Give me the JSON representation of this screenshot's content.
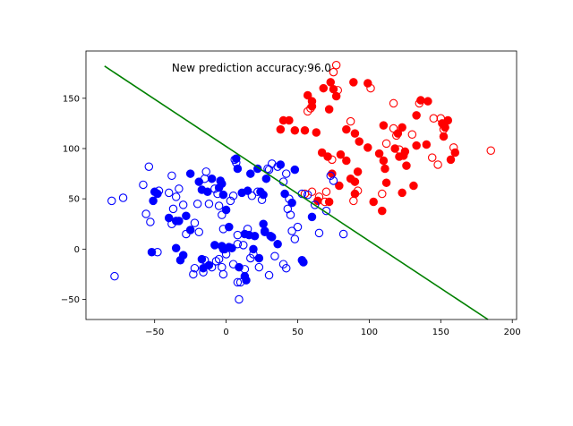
{
  "chart_data": {
    "type": "scatter",
    "title": "",
    "xlabel": "",
    "ylabel": "",
    "xlim": [
      -98,
      203
    ],
    "ylim": [
      -70,
      197
    ],
    "xticks": [
      -50,
      0,
      50,
      100,
      150,
      200
    ],
    "yticks": [
      -50,
      0,
      50,
      100,
      150
    ],
    "grid": false,
    "annotation": {
      "text": "New prediction accuracy:96.0",
      "x": -38,
      "y": 180
    },
    "decision_line": {
      "color": "#008000",
      "x": [
        -85,
        183
      ],
      "y": [
        182,
        -70
      ]
    },
    "series": [
      {
        "color": "#ff0000",
        "marker": "filled",
        "points": [
          [
            57,
            153
          ],
          [
            60,
            147
          ],
          [
            60,
            142
          ],
          [
            68,
            160
          ],
          [
            73,
            166
          ],
          [
            75,
            159
          ],
          [
            77,
            152
          ],
          [
            89,
            166
          ],
          [
            99,
            165
          ],
          [
            40,
            128
          ],
          [
            44,
            128
          ],
          [
            38,
            119
          ],
          [
            48,
            118
          ],
          [
            55,
            118
          ],
          [
            72,
            139
          ],
          [
            84,
            119
          ],
          [
            90,
            115
          ],
          [
            93,
            107
          ],
          [
            110,
            123
          ],
          [
            120,
            115
          ],
          [
            123,
            121
          ],
          [
            133,
            133
          ],
          [
            136,
            148
          ],
          [
            141,
            147
          ],
          [
            151,
            125
          ],
          [
            152,
            112
          ],
          [
            153,
            121
          ],
          [
            155,
            128
          ],
          [
            157,
            89
          ],
          [
            160,
            96
          ],
          [
            63,
            116
          ],
          [
            67,
            96
          ],
          [
            71,
            92
          ],
          [
            74,
            75
          ],
          [
            80,
            94
          ],
          [
            84,
            88
          ],
          [
            87,
            70
          ],
          [
            90,
            67
          ],
          [
            92,
            77
          ],
          [
            99,
            101
          ],
          [
            103,
            47
          ],
          [
            107,
            95
          ],
          [
            109,
            38
          ],
          [
            110,
            88
          ],
          [
            111,
            80
          ],
          [
            112,
            66
          ],
          [
            118,
            100
          ],
          [
            121,
            92
          ],
          [
            124,
            93
          ],
          [
            125,
            97
          ],
          [
            131,
            63
          ],
          [
            123,
            56
          ],
          [
            126,
            83
          ],
          [
            64,
            48
          ],
          [
            72,
            47
          ],
          [
            79,
            63
          ],
          [
            90,
            55
          ],
          [
            140,
            104
          ],
          [
            133,
            103
          ]
        ]
      },
      {
        "color": "#ff0000",
        "marker": "hollow",
        "points": [
          [
            77,
            183
          ],
          [
            75,
            176
          ],
          [
            78,
            158
          ],
          [
            101,
            160
          ],
          [
            57,
            137
          ],
          [
            59,
            140
          ],
          [
            117,
            145
          ],
          [
            135,
            145
          ],
          [
            145,
            130
          ],
          [
            150,
            130
          ],
          [
            159,
            101
          ],
          [
            152,
            119
          ],
          [
            117,
            120
          ],
          [
            130,
            114
          ],
          [
            87,
            127
          ],
          [
            112,
            105
          ],
          [
            121,
            99
          ],
          [
            144,
            91
          ],
          [
            148,
            84
          ],
          [
            185,
            98
          ],
          [
            74,
            89
          ],
          [
            92,
            58
          ],
          [
            89,
            48
          ],
          [
            109,
            55
          ],
          [
            69,
            47
          ],
          [
            70,
            57
          ],
          [
            60,
            57
          ],
          [
            65,
            52
          ],
          [
            55,
            55
          ],
          [
            119,
            113
          ]
        ]
      },
      {
        "color": "#0000ff",
        "marker": "filled",
        "points": [
          [
            -50,
            57
          ],
          [
            -48,
            55
          ],
          [
            -51,
            48
          ],
          [
            -40,
            31
          ],
          [
            -35,
            28
          ],
          [
            -33,
            28
          ],
          [
            -28,
            33
          ],
          [
            -25,
            75
          ],
          [
            -19,
            67
          ],
          [
            -17,
            59
          ],
          [
            -13,
            57
          ],
          [
            -10,
            70
          ],
          [
            -5,
            61
          ],
          [
            -4,
            68
          ],
          [
            -3,
            65
          ],
          [
            -2,
            54
          ],
          [
            0,
            39
          ],
          [
            2,
            22
          ],
          [
            7,
            90
          ],
          [
            8,
            80
          ],
          [
            11,
            56
          ],
          [
            15,
            58
          ],
          [
            17,
            75
          ],
          [
            20,
            13
          ],
          [
            22,
            80
          ],
          [
            24,
            57
          ],
          [
            26,
            54
          ],
          [
            26,
            25
          ],
          [
            27,
            17
          ],
          [
            28,
            70
          ],
          [
            27,
            18
          ],
          [
            32,
            12
          ],
          [
            31,
            13
          ],
          [
            36,
            5
          ],
          [
            38,
            84
          ],
          [
            41,
            55
          ],
          [
            46,
            46
          ],
          [
            48,
            79
          ],
          [
            53,
            -11
          ],
          [
            54,
            -13
          ],
          [
            60,
            32
          ],
          [
            -52,
            -3
          ],
          [
            -35,
            1
          ],
          [
            -32,
            -11
          ],
          [
            -25,
            19
          ],
          [
            -17,
            -10
          ],
          [
            -16,
            -19
          ],
          [
            -12,
            -16
          ],
          [
            -8,
            4
          ],
          [
            -3,
            3
          ],
          [
            -1,
            0
          ],
          [
            2,
            2
          ],
          [
            4,
            1
          ],
          [
            9,
            -18
          ],
          [
            13,
            -27
          ],
          [
            14,
            -31
          ],
          [
            19,
            0
          ],
          [
            23,
            -9
          ],
          [
            13,
            15
          ],
          [
            16,
            14
          ],
          [
            -30,
            -6
          ],
          [
            -2,
            0
          ]
        ]
      },
      {
        "color": "#0000ff",
        "marker": "hollow",
        "points": [
          [
            -80,
            48
          ],
          [
            -72,
            51
          ],
          [
            -58,
            64
          ],
          [
            -54,
            82
          ],
          [
            -47,
            58
          ],
          [
            -40,
            56
          ],
          [
            -38,
            73
          ],
          [
            -35,
            52
          ],
          [
            -33,
            60
          ],
          [
            -37,
            40
          ],
          [
            -38,
            25
          ],
          [
            -30,
            44
          ],
          [
            -22,
            26
          ],
          [
            -19,
            17
          ],
          [
            -14,
            77
          ],
          [
            -15,
            70
          ],
          [
            -20,
            45
          ],
          [
            -12,
            45
          ],
          [
            -8,
            60
          ],
          [
            -6,
            55
          ],
          [
            -5,
            43
          ],
          [
            -3,
            34
          ],
          [
            -2,
            20
          ],
          [
            3,
            48
          ],
          [
            5,
            53
          ],
          [
            6,
            89
          ],
          [
            7,
            86
          ],
          [
            8,
            14
          ],
          [
            8,
            5
          ],
          [
            12,
            4
          ],
          [
            15,
            20
          ],
          [
            18,
            53
          ],
          [
            22,
            57
          ],
          [
            25,
            49
          ],
          [
            29,
            80
          ],
          [
            30,
            79
          ],
          [
            32,
            85
          ],
          [
            36,
            82
          ],
          [
            40,
            67
          ],
          [
            42,
            75
          ],
          [
            43,
            40
          ],
          [
            44,
            50
          ],
          [
            45,
            34
          ],
          [
            46,
            18
          ],
          [
            48,
            10
          ],
          [
            50,
            22
          ],
          [
            53,
            55
          ],
          [
            57,
            54
          ],
          [
            62,
            44
          ],
          [
            65,
            16
          ],
          [
            70,
            38
          ],
          [
            73,
            73
          ],
          [
            75,
            68
          ],
          [
            82,
            15
          ],
          [
            -56,
            35
          ],
          [
            -53,
            27
          ],
          [
            -48,
            -3
          ],
          [
            -28,
            15
          ],
          [
            -23,
            -25
          ],
          [
            -22,
            -19
          ],
          [
            -16,
            -23
          ],
          [
            -10,
            -18
          ],
          [
            -7,
            -12
          ],
          [
            -5,
            -10
          ],
          [
            -3,
            -18
          ],
          [
            -2,
            -25
          ],
          [
            0,
            -5
          ],
          [
            5,
            -15
          ],
          [
            8,
            -33
          ],
          [
            9,
            -50
          ],
          [
            10,
            -33
          ],
          [
            13,
            -20
          ],
          [
            17,
            -9
          ],
          [
            19,
            -5
          ],
          [
            23,
            -18
          ],
          [
            30,
            -26
          ],
          [
            34,
            -7
          ],
          [
            40,
            -15
          ],
          [
            42,
            -19
          ],
          [
            -78,
            -27
          ],
          [
            -15,
            -11
          ]
        ]
      }
    ]
  }
}
